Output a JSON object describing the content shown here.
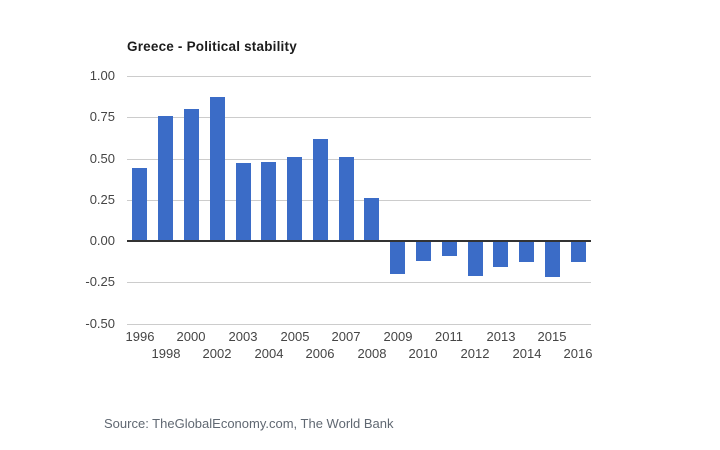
{
  "page": {
    "background": "#ffffff"
  },
  "header": {
    "title": "Greece - Political stability"
  },
  "footer": {
    "source": "Source: TheGlobalEconomy.com, The World Bank"
  },
  "colors": {
    "bar": "#3b6cc7",
    "gridline": "#cccccc",
    "zero_line": "#333333",
    "axis_text": "#454545",
    "title_text": "#1c1c1c",
    "source_text": "#606872"
  },
  "chart_data": {
    "type": "bar",
    "title": "Greece - Political stability",
    "xlabel": "",
    "ylabel": "",
    "categories": [
      "1996",
      "1998",
      "2000",
      "2002",
      "2003",
      "2004",
      "2005",
      "2006",
      "2007",
      "2008",
      "2009",
      "2010",
      "2011",
      "2012",
      "2013",
      "2014",
      "2015",
      "2016"
    ],
    "values": [
      0.44,
      0.76,
      0.8,
      0.87,
      0.47,
      0.48,
      0.51,
      0.62,
      0.51,
      0.26,
      -0.2,
      -0.12,
      -0.09,
      -0.21,
      -0.16,
      -0.13,
      -0.22,
      -0.13
    ],
    "ylim": [
      -0.5,
      1.0
    ],
    "ytick_step": 0.25,
    "ytick_labels": [
      "1.00",
      "0.75",
      "0.50",
      "0.25",
      "0.00",
      "-0.25",
      "-0.50"
    ],
    "grid": true,
    "legend": false,
    "x_label_layout": "staggered-two-rows",
    "bar_color": "#3b6cc7"
  }
}
